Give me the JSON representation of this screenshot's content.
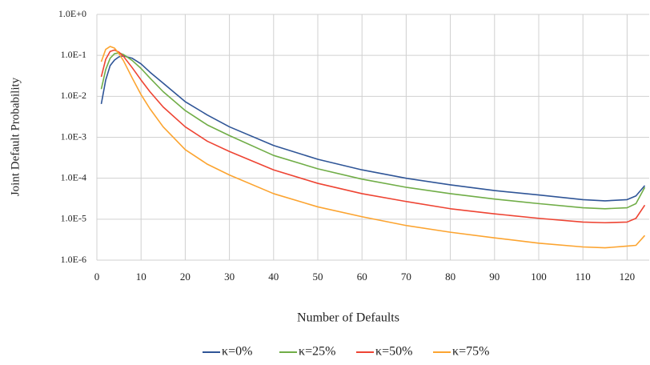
{
  "chart_data": {
    "type": "line",
    "x_label": "Number of Defaults",
    "y_label": "Joint Default Probability",
    "x": [
      1,
      2,
      3,
      4,
      5,
      6,
      8,
      10,
      12,
      15,
      20,
      25,
      30,
      40,
      50,
      60,
      70,
      80,
      90,
      100,
      110,
      115,
      120,
      122,
      124
    ],
    "series": [
      {
        "name": "κ=0%",
        "color": "#2f5597",
        "values": [
          0.0065,
          0.025,
          0.056,
          0.077,
          0.092,
          0.097,
          0.085,
          0.062,
          0.039,
          0.021,
          0.0074,
          0.0035,
          0.0018,
          0.00063,
          0.00029,
          0.00016,
          0.0001,
          6.9e-05,
          5e-05,
          3.9e-05,
          3e-05,
          2.8e-05,
          3e-05,
          3.7e-05,
          6.6e-05
        ]
      },
      {
        "name": "κ=25%",
        "color": "#70ad47",
        "values": [
          0.015,
          0.045,
          0.085,
          0.11,
          0.115,
          0.105,
          0.075,
          0.048,
          0.028,
          0.013,
          0.0045,
          0.002,
          0.0011,
          0.00036,
          0.00017,
          9.5e-05,
          6e-05,
          4.2e-05,
          3.1e-05,
          2.4e-05,
          1.9e-05,
          1.8e-05,
          1.9e-05,
          2.4e-05,
          6e-05
        ]
      },
      {
        "name": "κ=50%",
        "color": "#ee4433",
        "values": [
          0.03,
          0.08,
          0.125,
          0.135,
          0.12,
          0.095,
          0.05,
          0.025,
          0.013,
          0.0055,
          0.0018,
          0.0008,
          0.00045,
          0.00016,
          7.5e-05,
          4.2e-05,
          2.7e-05,
          1.8e-05,
          1.35e-05,
          1.05e-05,
          8.5e-06,
          8.2e-06,
          8.5e-06,
          1.05e-05,
          2.2e-05
        ]
      },
      {
        "name": "κ=75%",
        "color": "#fca430",
        "values": [
          0.07,
          0.14,
          0.165,
          0.15,
          0.11,
          0.075,
          0.028,
          0.011,
          0.005,
          0.0018,
          0.0005,
          0.00022,
          0.00012,
          4.2e-05,
          2e-05,
          1.15e-05,
          7e-06,
          4.8e-06,
          3.5e-06,
          2.6e-06,
          2.1e-06,
          2e-06,
          2.2e-06,
          2.3e-06,
          4e-06
        ]
      }
    ],
    "xlim": [
      0,
      125
    ],
    "xticks": [
      0,
      10,
      20,
      30,
      40,
      50,
      60,
      70,
      80,
      90,
      100,
      110,
      120
    ],
    "ylim": [
      1e-06,
      1
    ],
    "ylog": true,
    "yticks": [
      {
        "value": 1,
        "label": "1.0E+0"
      },
      {
        "value": 0.1,
        "label": "1.0E-1"
      },
      {
        "value": 0.01,
        "label": "1.0E-2"
      },
      {
        "value": 0.001,
        "label": "1.0E-3"
      },
      {
        "value": 0.0001,
        "label": "1.0E-4"
      },
      {
        "value": 1e-05,
        "label": "1.0E-5"
      },
      {
        "value": 1e-06,
        "label": "1.0E-6"
      }
    ],
    "grid": true,
    "legend": "bottom"
  }
}
